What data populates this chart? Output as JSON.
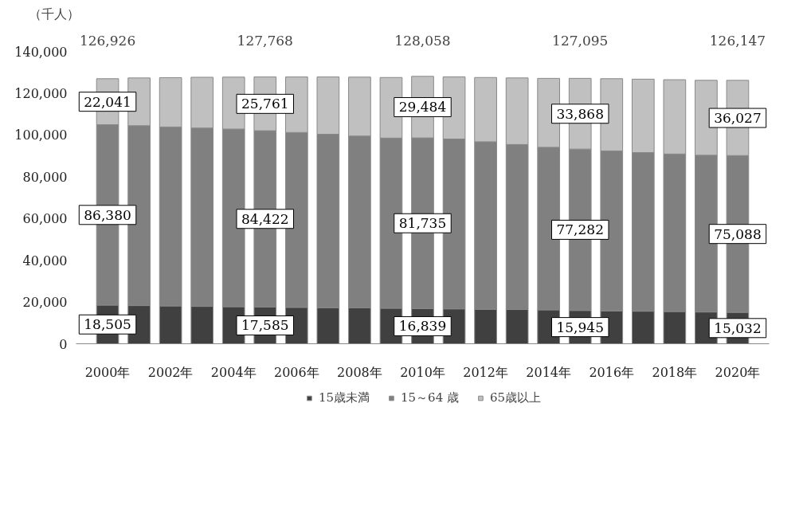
{
  "chart_data": {
    "type": "bar",
    "stacked": true,
    "ylabel": "（千人）",
    "categories": [
      "2000年",
      null,
      "2002年",
      null,
      "2004年",
      null,
      "2006年",
      null,
      "2008年",
      null,
      "2010年",
      null,
      "2012年",
      null,
      "2014年",
      null,
      "2016年",
      null,
      "2018年",
      null,
      "2020年"
    ],
    "series": [
      {
        "name": "15歳未満",
        "color": "#404040",
        "values": [
          18505,
          18283,
          18102,
          17905,
          17734,
          17585,
          17435,
          17293,
          17176,
          17011,
          16839,
          16705,
          16547,
          16390,
          16233,
          15945,
          15780,
          15592,
          15415,
          15210,
          15032
        ],
        "value_labels": [
          "18,505",
          null,
          null,
          null,
          null,
          "17,585",
          null,
          null,
          null,
          null,
          "16,839",
          null,
          null,
          null,
          null,
          "15,945",
          null,
          null,
          null,
          null,
          "15,032"
        ]
      },
      {
        "name": "15～64 歳",
        "color": "#808080",
        "values": [
          86380,
          86139,
          85706,
          85404,
          85077,
          84422,
          83731,
          83015,
          82300,
          81493,
          81735,
          81342,
          80175,
          79010,
          77850,
          77282,
          76562,
          75962,
          75451,
          75072,
          75088
        ],
        "value_labels": [
          "86,380",
          null,
          null,
          null,
          null,
          "84,422",
          null,
          null,
          null,
          null,
          "81,735",
          null,
          null,
          null,
          null,
          "77,282",
          null,
          null,
          null,
          null,
          "75,088"
        ]
      },
      {
        "name": "65歳以上",
        "color": "#c0c0c0",
        "values": [
          22041,
          22869,
          23628,
          24311,
          24876,
          25761,
          26604,
          27464,
          28216,
          29005,
          29484,
          29752,
          30793,
          31898,
          33000,
          33868,
          34591,
          35152,
          35578,
          35885,
          36027
        ],
        "value_labels": [
          "22,041",
          null,
          null,
          null,
          null,
          "25,761",
          null,
          null,
          null,
          null,
          "29,484",
          null,
          null,
          null,
          null,
          "33,868",
          null,
          null,
          null,
          null,
          "36,027"
        ]
      }
    ],
    "totals": [
      "126,926",
      null,
      null,
      null,
      null,
      "127,768",
      null,
      null,
      null,
      null,
      "128,058",
      null,
      null,
      null,
      null,
      "127,095",
      null,
      null,
      null,
      null,
      "126,147"
    ],
    "ylim": [
      0,
      140000
    ],
    "yticks": [
      0,
      {
        "value": 20000,
        "label": "20,000"
      },
      {
        "value": 40000,
        "label": "40,000"
      },
      {
        "value": 60000,
        "label": "60,000"
      },
      {
        "value": 80000,
        "label": "80,000"
      },
      {
        "value": 100000,
        "label": "100,000"
      },
      {
        "value": 120000,
        "label": "120,000"
      },
      {
        "value": 140000,
        "label": "140,000"
      }
    ],
    "grid": false,
    "legend": "bottom"
  }
}
